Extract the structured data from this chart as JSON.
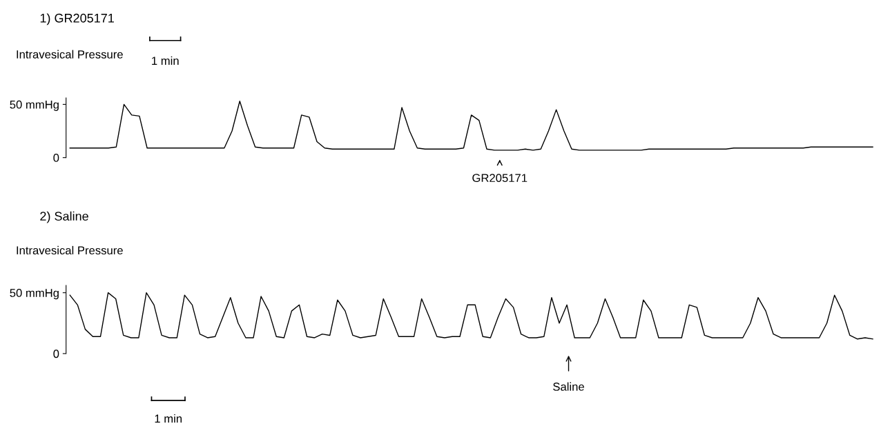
{
  "chart_data": [
    {
      "type": "line",
      "title": "1) GR205171",
      "ylabel": "Intravesical Pressure",
      "annotations": [
        "1 min",
        "GR205171"
      ],
      "categories": [
        null,
        null,
        null,
        null,
        null,
        null,
        null,
        null,
        null,
        null,
        null,
        null,
        null,
        null,
        null,
        null,
        null,
        null,
        null,
        null,
        null,
        null,
        null,
        null,
        null,
        null,
        null,
        null,
        null,
        null,
        null,
        null,
        null,
        null,
        null,
        null,
        null,
        null,
        null,
        null,
        null,
        null,
        null,
        null,
        null,
        null,
        null,
        null,
        null,
        null,
        null,
        null,
        null,
        null,
        null,
        null,
        null,
        null,
        null,
        null,
        null,
        null,
        null,
        null,
        null,
        null,
        null,
        null,
        null,
        null,
        null,
        null,
        null,
        null,
        null,
        null,
        null,
        null,
        null,
        null,
        null,
        null,
        null,
        null,
        null,
        null,
        null,
        null,
        null,
        null,
        null,
        null,
        null,
        null,
        null,
        null,
        null,
        null,
        null,
        null,
        null,
        null,
        null,
        null,
        null
      ],
      "series": [
        {
          "color": "#000000",
          "values": [
            9,
            9,
            9,
            9,
            9,
            9,
            10,
            50,
            40,
            39,
            9,
            9,
            9,
            9,
            9,
            9,
            9,
            9,
            9,
            9,
            9,
            25,
            53,
            30,
            10,
            9,
            9,
            9,
            9,
            9,
            40,
            38,
            15,
            9,
            8,
            8,
            8,
            8,
            8,
            8,
            8,
            8,
            8,
            47,
            25,
            9,
            8,
            8,
            8,
            8,
            8,
            9,
            40,
            35,
            8,
            7,
            7,
            7,
            7,
            8,
            7,
            8,
            25,
            45,
            25,
            8,
            7,
            7,
            7,
            7,
            7,
            7,
            7,
            7,
            7,
            8,
            8,
            8,
            8,
            8,
            8,
            8,
            8,
            8,
            8,
            8,
            9,
            9,
            9,
            9,
            9,
            9,
            9,
            9,
            9,
            9,
            10,
            10,
            10,
            10,
            10,
            10,
            10,
            10,
            10
          ]
        }
      ],
      "ylim": [
        0,
        56
      ],
      "yticks": [
        0,
        {
          "value": 50,
          "label": "50 mmHg"
        }
      ],
      "tick_labels": "y",
      "grid": false,
      "marker": "none",
      "line_style": "solid"
    },
    {
      "type": "line",
      "title": "2) Saline",
      "ylabel": "Intravesical Pressure",
      "annotations": [
        "1 min",
        "Saline"
      ],
      "categories": [
        null,
        null,
        null,
        null,
        null,
        null,
        null,
        null,
        null,
        null,
        null,
        null,
        null,
        null,
        null,
        null,
        null,
        null,
        null,
        null,
        null,
        null,
        null,
        null,
        null,
        null,
        null,
        null,
        null,
        null,
        null,
        null,
        null,
        null,
        null,
        null,
        null,
        null,
        null,
        null,
        null,
        null,
        null,
        null,
        null,
        null,
        null,
        null,
        null,
        null,
        null,
        null,
        null,
        null,
        null,
        null,
        null,
        null,
        null,
        null,
        null,
        null,
        null,
        null,
        null,
        null,
        null,
        null,
        null,
        null,
        null,
        null,
        null,
        null,
        null,
        null,
        null,
        null,
        null,
        null,
        null,
        null,
        null,
        null,
        null,
        null,
        null,
        null,
        null,
        null,
        null,
        null,
        null,
        null,
        null,
        null,
        null,
        null,
        null,
        null,
        null,
        null,
        null,
        null,
        null,
        null
      ],
      "series": [
        {
          "color": "#000000",
          "values": [
            48,
            40,
            20,
            14,
            14,
            50,
            45,
            15,
            13,
            13,
            50,
            40,
            15,
            13,
            13,
            48,
            40,
            16,
            13,
            14,
            30,
            46,
            25,
            13,
            13,
            47,
            35,
            14,
            13,
            35,
            40,
            14,
            13,
            16,
            15,
            44,
            35,
            15,
            13,
            14,
            15,
            45,
            30,
            14,
            14,
            14,
            45,
            30,
            14,
            13,
            14,
            14,
            40,
            40,
            14,
            13,
            30,
            45,
            38,
            16,
            13,
            13,
            14,
            46,
            25,
            40,
            13,
            13,
            13,
            25,
            45,
            30,
            13,
            13,
            13,
            44,
            35,
            13,
            13,
            13,
            13,
            40,
            38,
            15,
            13,
            13,
            13,
            13,
            13,
            25,
            46,
            35,
            16,
            13,
            13,
            13,
            13,
            13,
            13,
            25,
            48,
            35,
            15,
            12,
            13,
            12
          ]
        }
      ],
      "ylim": [
        0,
        56
      ],
      "yticks": [
        0,
        {
          "value": 50,
          "label": "50 mmHg"
        }
      ],
      "tick_labels": "y",
      "grid": false,
      "marker": "none",
      "line_style": "solid"
    }
  ]
}
